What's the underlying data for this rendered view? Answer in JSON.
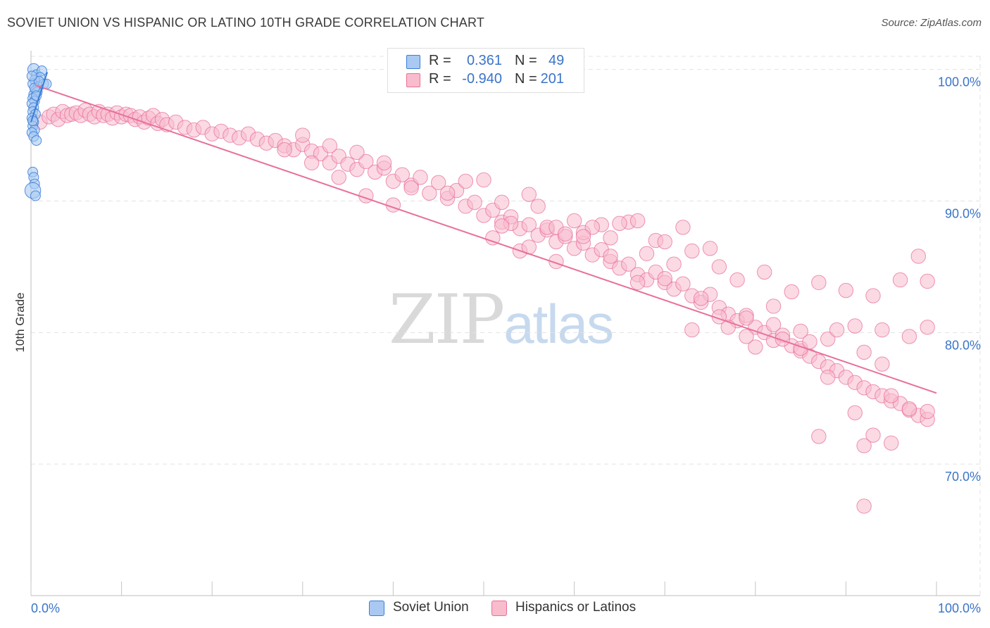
{
  "title": "SOVIET UNION VS HISPANIC OR LATINO 10TH GRADE CORRELATION CHART",
  "source": "Source: ZipAtlas.com",
  "watermark": {
    "zip": "ZIP",
    "atlas": "atlas"
  },
  "legend_top": {
    "rows": [
      {
        "r_label": "R =",
        "r_value": "0.361",
        "n_label": "N =",
        "n_value": "49",
        "color": "#a9c9f2"
      },
      {
        "r_label": "R =",
        "r_value": "-0.940",
        "n_label": "N =",
        "n_value": "201",
        "color": "#f8bccd"
      }
    ]
  },
  "legend_bottom": [
    {
      "label": "Soviet Union",
      "color": "#a9c9f2"
    },
    {
      "label": "Hispanics or Latinos",
      "color": "#f8bccd"
    }
  ],
  "chart_data": {
    "type": "scatter",
    "title": "SOVIET UNION VS HISPANIC OR LATINO 10TH GRADE CORRELATION CHART",
    "xlabel": "",
    "ylabel": "10th Grade",
    "xlim": [
      0,
      100
    ],
    "ylim": [
      60,
      101
    ],
    "x_tick_labels": [
      "0.0%",
      "100.0%"
    ],
    "y_ticks": [
      70,
      80,
      90,
      100
    ],
    "y_tick_labels": [
      "70.0%",
      "80.0%",
      "90.0%",
      "100.0%"
    ],
    "grid": true,
    "colors": {
      "soviet": "#3b7dd8",
      "soviet_fill": "#a9c9f2",
      "hispanic": "#e8709a",
      "hispanic_fill": "#f8bccd",
      "tick_label": "#3a74c8"
    },
    "series": [
      {
        "name": "Soviet Union",
        "trend": {
          "x": [
            0.0,
            1.8
          ],
          "y": [
            96.0,
            99.8
          ]
        },
        "points": [
          [
            0.3,
            100.0
          ],
          [
            0.6,
            99.6
          ],
          [
            1.2,
            99.9
          ],
          [
            1.0,
            99.4
          ],
          [
            0.4,
            99.2
          ],
          [
            0.2,
            98.9
          ],
          [
            0.8,
            98.7
          ],
          [
            1.4,
            98.9
          ],
          [
            1.7,
            98.9
          ],
          [
            0.5,
            98.4
          ],
          [
            0.3,
            98.1
          ],
          [
            0.7,
            98.3
          ],
          [
            0.2,
            97.8
          ],
          [
            0.4,
            97.6
          ],
          [
            0.1,
            97.4
          ],
          [
            0.3,
            97.1
          ],
          [
            0.2,
            96.8
          ],
          [
            0.5,
            96.6
          ],
          [
            0.1,
            96.3
          ],
          [
            0.3,
            96.0
          ],
          [
            0.2,
            95.7
          ],
          [
            0.4,
            95.4
          ],
          [
            0.1,
            95.2
          ],
          [
            0.3,
            94.9
          ],
          [
            0.6,
            94.6
          ],
          [
            0.2,
            96.1
          ],
          [
            0.4,
            98.6
          ],
          [
            0.9,
            99.1
          ],
          [
            0.2,
            92.2
          ],
          [
            0.3,
            91.8
          ],
          [
            0.4,
            91.3
          ],
          [
            0.2,
            90.8
          ],
          [
            0.5,
            90.4
          ],
          [
            0.6,
            98.0
          ],
          [
            0.1,
            99.5
          ]
        ],
        "sizes": [
          12,
          10,
          10,
          10,
          10,
          10,
          10,
          10,
          10,
          10,
          10,
          10,
          10,
          10,
          10,
          10,
          10,
          10,
          10,
          10,
          10,
          10,
          10,
          10,
          10,
          10,
          10,
          10,
          10,
          10,
          10,
          16,
          10,
          10,
          10
        ]
      },
      {
        "name": "Hispanics or Latinos",
        "trend": {
          "x": [
            0.5,
            100.0
          ],
          "y": [
            98.8,
            75.4
          ]
        },
        "points": [
          [
            1,
            96.0
          ],
          [
            2,
            96.4
          ],
          [
            2.5,
            96.6
          ],
          [
            3,
            96.2
          ],
          [
            3.5,
            96.8
          ],
          [
            4,
            96.5
          ],
          [
            4.5,
            96.6
          ],
          [
            5,
            96.7
          ],
          [
            5.5,
            96.5
          ],
          [
            6,
            96.9
          ],
          [
            6.5,
            96.6
          ],
          [
            7,
            96.4
          ],
          [
            7.5,
            96.8
          ],
          [
            8,
            96.5
          ],
          [
            8.5,
            96.6
          ],
          [
            9,
            96.3
          ],
          [
            9.5,
            96.7
          ],
          [
            10,
            96.4
          ],
          [
            10.5,
            96.6
          ],
          [
            11,
            96.5
          ],
          [
            11.5,
            96.2
          ],
          [
            12,
            96.4
          ],
          [
            12.5,
            96.0
          ],
          [
            13,
            96.3
          ],
          [
            13.5,
            96.5
          ],
          [
            14,
            95.9
          ],
          [
            14.5,
            96.2
          ],
          [
            15,
            95.8
          ],
          [
            16,
            96.0
          ],
          [
            17,
            95.6
          ],
          [
            18,
            95.4
          ],
          [
            19,
            95.6
          ],
          [
            20,
            95.1
          ],
          [
            21,
            95.3
          ],
          [
            22,
            95.0
          ],
          [
            23,
            94.8
          ],
          [
            24,
            95.1
          ],
          [
            25,
            94.7
          ],
          [
            26,
            94.4
          ],
          [
            27,
            94.6
          ],
          [
            28,
            94.2
          ],
          [
            29,
            93.9
          ],
          [
            30,
            94.3
          ],
          [
            31,
            93.8
          ],
          [
            32,
            93.6
          ],
          [
            33,
            92.9
          ],
          [
            34,
            93.4
          ],
          [
            35,
            92.8
          ],
          [
            36,
            92.4
          ],
          [
            37,
            93.0
          ],
          [
            38,
            92.2
          ],
          [
            39,
            92.5
          ],
          [
            40,
            91.5
          ],
          [
            41,
            92.0
          ],
          [
            42,
            91.2
          ],
          [
            43,
            91.8
          ],
          [
            44,
            90.6
          ],
          [
            45,
            91.4
          ],
          [
            46,
            90.2
          ],
          [
            47,
            90.8
          ],
          [
            48,
            89.6
          ],
          [
            49,
            89.9
          ],
          [
            50,
            88.9
          ],
          [
            51,
            89.3
          ],
          [
            52,
            88.4
          ],
          [
            53,
            88.8
          ],
          [
            54,
            87.9
          ],
          [
            55,
            88.2
          ],
          [
            56,
            87.4
          ],
          [
            57,
            87.8
          ],
          [
            58,
            86.9
          ],
          [
            59,
            87.3
          ],
          [
            60,
            86.4
          ],
          [
            61,
            86.8
          ],
          [
            62,
            85.9
          ],
          [
            63,
            86.3
          ],
          [
            64,
            85.4
          ],
          [
            65,
            84.9
          ],
          [
            66,
            85.2
          ],
          [
            67,
            84.4
          ],
          [
            68,
            84.0
          ],
          [
            69,
            84.6
          ],
          [
            70,
            83.8
          ],
          [
            71,
            83.3
          ],
          [
            72,
            83.7
          ],
          [
            73,
            82.8
          ],
          [
            74,
            82.3
          ],
          [
            75,
            82.9
          ],
          [
            76,
            81.9
          ],
          [
            77,
            81.4
          ],
          [
            78,
            80.9
          ],
          [
            79,
            81.3
          ],
          [
            80,
            80.4
          ],
          [
            81,
            80.0
          ],
          [
            82,
            79.4
          ],
          [
            83,
            79.8
          ],
          [
            84,
            79.0
          ],
          [
            85,
            78.6
          ],
          [
            86,
            78.2
          ],
          [
            87,
            77.8
          ],
          [
            88,
            77.4
          ],
          [
            89,
            77.1
          ],
          [
            90,
            76.6
          ],
          [
            91,
            76.2
          ],
          [
            92,
            75.8
          ],
          [
            93,
            75.5
          ],
          [
            94,
            75.2
          ],
          [
            95,
            74.8
          ],
          [
            96,
            74.6
          ],
          [
            97,
            74.1
          ],
          [
            98,
            73.7
          ],
          [
            99,
            73.4
          ],
          [
            50,
            91.6
          ],
          [
            52,
            89.9
          ],
          [
            55,
            90.5
          ],
          [
            57,
            88.0
          ],
          [
            60,
            88.5
          ],
          [
            63,
            88.2
          ],
          [
            66,
            88.4
          ],
          [
            69,
            87.0
          ],
          [
            72,
            88.0
          ],
          [
            75,
            86.4
          ],
          [
            78,
            84.0
          ],
          [
            81,
            84.6
          ],
          [
            84,
            83.1
          ],
          [
            87,
            83.8
          ],
          [
            90,
            83.2
          ],
          [
            93,
            82.8
          ],
          [
            96,
            84.0
          ],
          [
            99,
            83.9
          ],
          [
            51,
            87.2
          ],
          [
            54,
            86.2
          ],
          [
            58,
            88.0
          ],
          [
            61,
            87.6
          ],
          [
            64,
            87.2
          ],
          [
            67,
            88.5
          ],
          [
            70,
            86.9
          ],
          [
            73,
            86.2
          ],
          [
            76,
            85.0
          ],
          [
            79,
            81.1
          ],
          [
            82,
            80.6
          ],
          [
            85,
            78.8
          ],
          [
            88,
            79.5
          ],
          [
            91,
            80.5
          ],
          [
            94,
            80.2
          ],
          [
            97,
            79.7
          ],
          [
            99,
            80.4
          ],
          [
            53,
            88.3
          ],
          [
            56,
            89.6
          ],
          [
            59,
            87.5
          ],
          [
            62,
            88.0
          ],
          [
            65,
            88.3
          ],
          [
            68,
            86.0
          ],
          [
            71,
            85.2
          ],
          [
            74,
            82.6
          ],
          [
            77,
            80.4
          ],
          [
            80,
            78.9
          ],
          [
            83,
            79.5
          ],
          [
            86,
            79.3
          ],
          [
            89,
            80.2
          ],
          [
            92,
            78.5
          ],
          [
            95,
            75.2
          ],
          [
            98,
            85.8
          ],
          [
            46,
            90.6
          ],
          [
            48,
            91.5
          ],
          [
            52,
            88.1
          ],
          [
            55,
            86.5
          ],
          [
            58,
            85.4
          ],
          [
            61,
            87.3
          ],
          [
            64,
            85.8
          ],
          [
            67,
            83.8
          ],
          [
            70,
            84.1
          ],
          [
            73,
            80.2
          ],
          [
            76,
            81.2
          ],
          [
            79,
            79.7
          ],
          [
            82,
            82.0
          ],
          [
            85,
            80.1
          ],
          [
            88,
            76.6
          ],
          [
            91,
            73.9
          ],
          [
            94,
            77.6
          ],
          [
            97,
            74.2
          ],
          [
            99,
            74.0
          ],
          [
            87,
            72.1
          ],
          [
            92,
            71.4
          ],
          [
            93,
            72.2
          ],
          [
            95,
            71.6
          ],
          [
            92,
            66.8
          ],
          [
            30,
            95.0
          ],
          [
            33,
            94.2
          ],
          [
            36,
            93.7
          ],
          [
            39,
            92.9
          ],
          [
            42,
            91.0
          ],
          [
            28,
            93.9
          ],
          [
            31,
            92.9
          ],
          [
            34,
            91.8
          ],
          [
            37,
            90.4
          ],
          [
            40,
            89.7
          ]
        ],
        "sizes": [
          12,
          12,
          12,
          12,
          12,
          12,
          12,
          12,
          12,
          12,
          12,
          12,
          12,
          12,
          12,
          12,
          12,
          12,
          12,
          12,
          12,
          12,
          12,
          12,
          12,
          12,
          12,
          12,
          12,
          12,
          12,
          12,
          12,
          12,
          12,
          12,
          12,
          12,
          12,
          12,
          12,
          12,
          12,
          12,
          12,
          12,
          12,
          12,
          12,
          12,
          12,
          12,
          12,
          12,
          12,
          12,
          12,
          12,
          12,
          12,
          12,
          12,
          12,
          12,
          12,
          12,
          12,
          12,
          12,
          12,
          12,
          12,
          12,
          12,
          12,
          12,
          12,
          12,
          12,
          12,
          12,
          12,
          12,
          12,
          12,
          12,
          12,
          12,
          12,
          12,
          12,
          12,
          12,
          12,
          12,
          12,
          12,
          12,
          12,
          12,
          12,
          12,
          12,
          12,
          12,
          12,
          12,
          12,
          12,
          12,
          12,
          12,
          12,
          12,
          12,
          12,
          12,
          12,
          12,
          12,
          12,
          12,
          12,
          12,
          12,
          12,
          12,
          12,
          12,
          12,
          12,
          12,
          12,
          12,
          12,
          12,
          12,
          12,
          12,
          12,
          12,
          12,
          12,
          12,
          12,
          12,
          12,
          12,
          12,
          12,
          12,
          12,
          12,
          12,
          12,
          12,
          12,
          12,
          12,
          12,
          12,
          12,
          12,
          12,
          12,
          12,
          12,
          12,
          12,
          12,
          12,
          12,
          12,
          12,
          12,
          12,
          12,
          12,
          12,
          12,
          12,
          12,
          12,
          12,
          12,
          12,
          12,
          12,
          12,
          12,
          12,
          12,
          12,
          12,
          12,
          12,
          12,
          12,
          12,
          12,
          12,
          12,
          12,
          12,
          12,
          12,
          12,
          12,
          12,
          12,
          12
        ]
      }
    ]
  }
}
